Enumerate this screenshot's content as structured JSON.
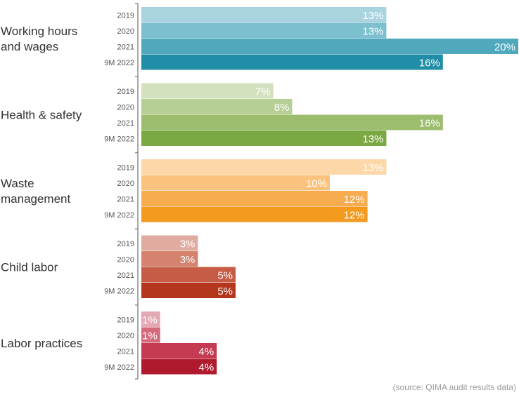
{
  "chart_data": {
    "type": "bar",
    "orientation": "horizontal",
    "value_suffix": "%",
    "xlim": [
      0,
      20
    ],
    "grid": false,
    "legend": "none",
    "groups": [
      {
        "name": "Working hours and wages",
        "name_lines": [
          "Working hours",
          "and wages"
        ],
        "bars": [
          {
            "period": "2019",
            "value": 13,
            "label": "13%",
            "color": "#a9d3df"
          },
          {
            "period": "2020",
            "value": 13,
            "label": "13%",
            "color": "#7cc0cf"
          },
          {
            "period": "2021",
            "value": 20,
            "label": "20%",
            "color": "#4fa8bb"
          },
          {
            "period": "9M 2022",
            "value": 16,
            "label": "16%",
            "color": "#1f8ea6"
          }
        ]
      },
      {
        "name": "Health & safety",
        "name_lines": [
          "Health & safety"
        ],
        "bars": [
          {
            "period": "2019",
            "value": 7,
            "label": "7%",
            "color": "#d3e1bf"
          },
          {
            "period": "2020",
            "value": 8,
            "label": "8%",
            "color": "#b6cf95"
          },
          {
            "period": "2021",
            "value": 16,
            "label": "16%",
            "color": "#9cbd6d"
          },
          {
            "period": "9M 2022",
            "value": 13,
            "label": "13%",
            "color": "#7aa843"
          }
        ]
      },
      {
        "name": "Waste management",
        "name_lines": [
          "Waste",
          "management"
        ],
        "bars": [
          {
            "period": "2019",
            "value": 13,
            "label": "13%",
            "color": "#fdd7a8"
          },
          {
            "period": "2020",
            "value": 10,
            "label": "10%",
            "color": "#fbc27e"
          },
          {
            "period": "2021",
            "value": 12,
            "label": "12%",
            "color": "#f8ac50"
          },
          {
            "period": "9M 2022",
            "value": 12,
            "label": "12%",
            "color": "#f39a1f"
          }
        ]
      },
      {
        "name": "Child labor",
        "name_lines": [
          "Child labor"
        ],
        "bars": [
          {
            "period": "2019",
            "value": 3,
            "label": "3%",
            "color": "#e0aca0"
          },
          {
            "period": "2020",
            "value": 3,
            "label": "3%",
            "color": "#d4836f"
          },
          {
            "period": "2021",
            "value": 5,
            "label": "5%",
            "color": "#c65c46"
          },
          {
            "period": "9M 2022",
            "value": 5,
            "label": "5%",
            "color": "#b3361d"
          }
        ]
      },
      {
        "name": "Labor practices",
        "name_lines": [
          "Labor practices"
        ],
        "bars": [
          {
            "period": "2019",
            "value": 1,
            "label": "1%",
            "color": "#e3a8b3"
          },
          {
            "period": "2020",
            "value": 1,
            "label": "1%",
            "color": "#d46b7c"
          },
          {
            "period": "2021",
            "value": 4,
            "label": "4%",
            "color": "#c43b52"
          },
          {
            "period": "9M 2022",
            "value": 4,
            "label": "4%",
            "color": "#b01a2e"
          }
        ]
      }
    ],
    "source": "(source: QIMA audit results data)"
  }
}
